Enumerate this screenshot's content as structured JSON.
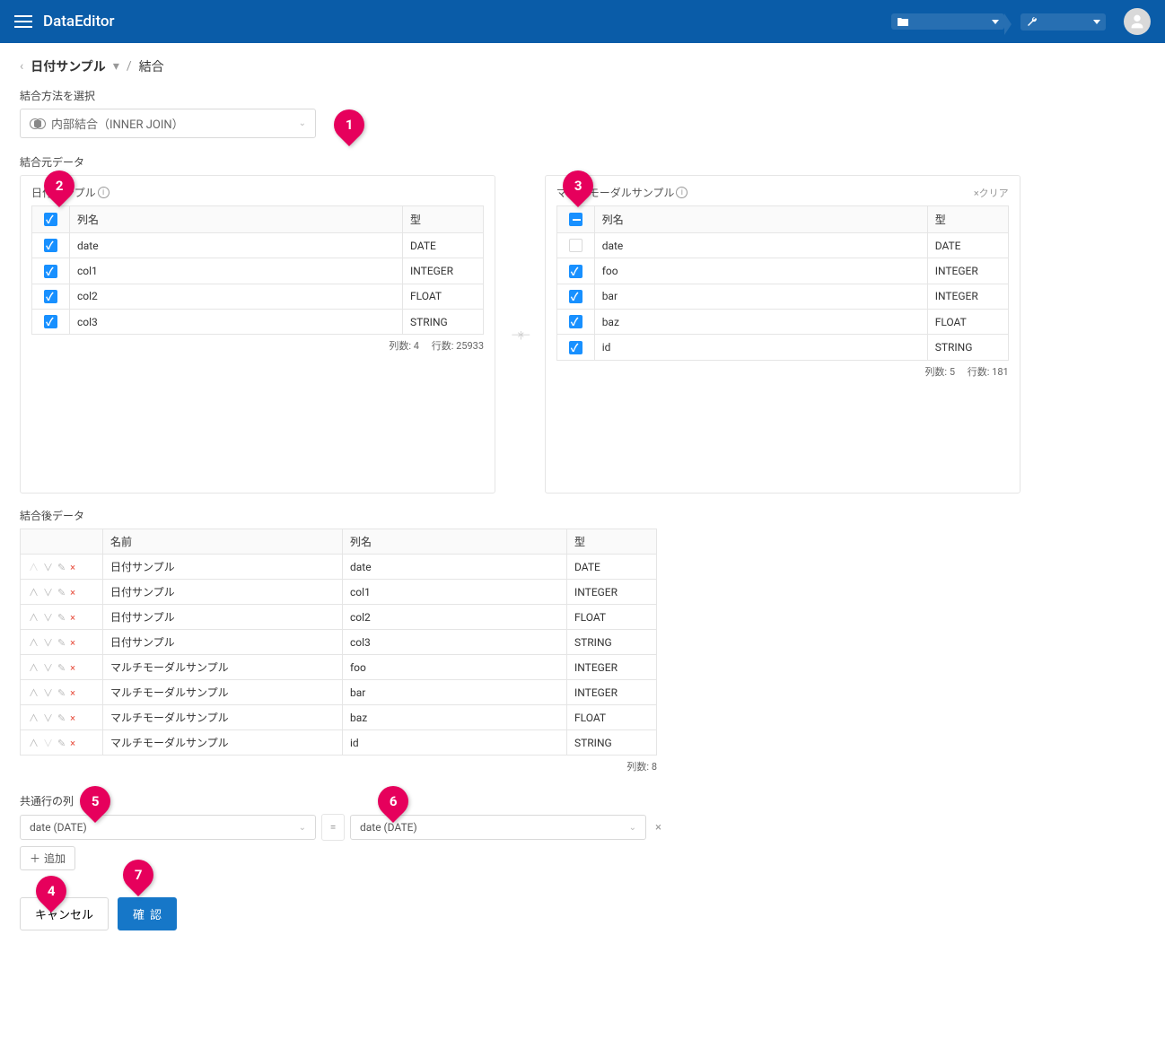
{
  "header": {
    "app_title": "DataEditor"
  },
  "breadcrumb": {
    "parent": "日付サンプル",
    "current": "結合"
  },
  "join_method": {
    "label": "結合方法を選択",
    "selected": "内部結合（INNER JOIN）"
  },
  "source_label": "結合元データ",
  "left_source": {
    "title": "日付サンプル",
    "header_col": "列名",
    "header_type": "型",
    "rows": [
      {
        "name": "date",
        "type": "DATE",
        "checked": true
      },
      {
        "name": "col1",
        "type": "INTEGER",
        "checked": true
      },
      {
        "name": "col2",
        "type": "FLOAT",
        "checked": true
      },
      {
        "name": "col3",
        "type": "STRING",
        "checked": true
      }
    ],
    "stats": "列数: 4　 行数: 25933"
  },
  "right_source": {
    "title": "マルチモーダルサンプル",
    "clear": "×クリア",
    "header_col": "列名",
    "header_type": "型",
    "rows": [
      {
        "name": "date",
        "type": "DATE",
        "checked": false
      },
      {
        "name": "foo",
        "type": "INTEGER",
        "checked": true
      },
      {
        "name": "bar",
        "type": "INTEGER",
        "checked": true
      },
      {
        "name": "baz",
        "type": "FLOAT",
        "checked": true
      },
      {
        "name": "id",
        "type": "STRING",
        "checked": true
      }
    ],
    "stats": "列数: 5　 行数: 181"
  },
  "result": {
    "label": "結合後データ",
    "header_name": "名前",
    "header_col": "列名",
    "header_type": "型",
    "rows": [
      {
        "name": "日付サンプル",
        "col": "date",
        "type": "DATE"
      },
      {
        "name": "日付サンプル",
        "col": "col1",
        "type": "INTEGER"
      },
      {
        "name": "日付サンプル",
        "col": "col2",
        "type": "FLOAT"
      },
      {
        "name": "日付サンプル",
        "col": "col3",
        "type": "STRING"
      },
      {
        "name": "マルチモーダルサンプル",
        "col": "foo",
        "type": "INTEGER"
      },
      {
        "name": "マルチモーダルサンプル",
        "col": "bar",
        "type": "INTEGER"
      },
      {
        "name": "マルチモーダルサンプル",
        "col": "baz",
        "type": "FLOAT"
      },
      {
        "name": "マルチモーダルサンプル",
        "col": "id",
        "type": "STRING"
      }
    ],
    "stats": "列数: 8"
  },
  "keys": {
    "label": "共通行の列",
    "left_val": "date (DATE)",
    "right_val": "date (DATE)",
    "add": "追加"
  },
  "footer": {
    "cancel": "キャンセル",
    "confirm": "確認"
  },
  "callouts": {
    "1": "1",
    "2": "2",
    "3": "3",
    "4": "4",
    "5": "5",
    "6": "6",
    "7": "7"
  }
}
